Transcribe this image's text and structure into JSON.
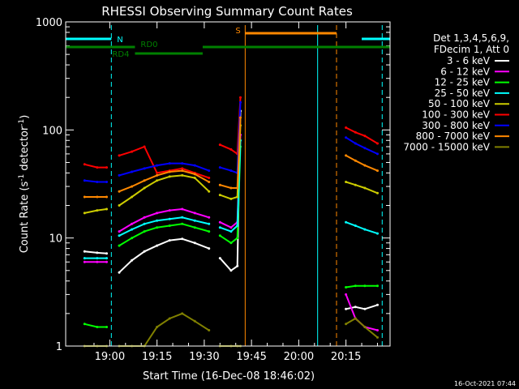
{
  "chart_data": {
    "type": "line",
    "title": "RHESSI Observing Summary Count Rates",
    "xlabel": "Start Time (16-Dec-08 18:46:02)",
    "ylabel_main": "Count Rate (s",
    "ylabel_sup1": "-1",
    "ylabel_mid": " detector",
    "ylabel_sup2": "-1",
    "ylabel_end": ")",
    "y_scale": "log",
    "ylim": [
      1,
      1000
    ],
    "xlim_min": [
      -14,
      89
    ],
    "x_ticks": [
      {
        "t": 0,
        "label": "19:00"
      },
      {
        "t": 15,
        "label": "19:15"
      },
      {
        "t": 30,
        "label": "19:30"
      },
      {
        "t": 45,
        "label": "19:45"
      },
      {
        "t": 60,
        "label": "20:00"
      },
      {
        "t": 75,
        "label": "20:15"
      }
    ],
    "y_ticks": [
      {
        "v": 1,
        "label": "1"
      },
      {
        "v": 10,
        "label": "10"
      },
      {
        "v": 100,
        "label": "100"
      },
      {
        "v": 1000,
        "label": "1000"
      }
    ],
    "legend_header": [
      "Det 1,3,4,5,6,9,",
      "FDecim 1, Att 0"
    ],
    "legend_position": "right",
    "series": [
      {
        "name": "3 - 6 keV",
        "color": "#ffffff",
        "x": [
          -8,
          -4,
          -1,
          3,
          7,
          11,
          15,
          19,
          23,
          27,
          31.5,
          35,
          38.5,
          40.5,
          41.5,
          75,
          78,
          81,
          85
        ],
        "y": [
          7.5,
          7.3,
          7.2,
          4.8,
          6.2,
          7.5,
          8.5,
          9.5,
          9.8,
          9.0,
          8.0,
          6.5,
          5.0,
          5.5,
          150,
          2.2,
          2.3,
          2.2,
          2.4
        ],
        "gaps_after_x": [
          -1,
          31.5,
          41.5
        ]
      },
      {
        "name": "6 - 12 keV",
        "color": "#ff00ff",
        "x": [
          -8,
          -4,
          -1,
          3,
          7,
          11,
          15,
          19,
          23,
          27,
          31.5,
          35,
          38.5,
          40.5,
          41.5,
          75,
          78,
          81,
          85
        ],
        "y": [
          6.0,
          6.0,
          6.0,
          11.5,
          13.5,
          15.5,
          17,
          18,
          18.5,
          17,
          15.5,
          14,
          12.5,
          14,
          90,
          3.0,
          1.8,
          1.5,
          1.4
        ],
        "gaps_after_x": [
          -1,
          31.5,
          41.5
        ]
      },
      {
        "name": "12 - 25 keV",
        "color": "#00ff00",
        "x": [
          -8,
          -4,
          -1,
          3,
          7,
          11,
          15,
          19,
          23,
          27,
          31.5,
          35,
          38.5,
          40.5,
          41.5,
          75,
          78,
          81,
          85
        ],
        "y": [
          1.6,
          1.5,
          1.5,
          8.5,
          10,
          11.5,
          12.5,
          13,
          13.5,
          12.5,
          11.5,
          10.5,
          9.0,
          10,
          70,
          3.5,
          3.6,
          3.6,
          3.6
        ],
        "gaps_after_x": [
          -1,
          31.5,
          41.5
        ]
      },
      {
        "name": "25 - 50 keV",
        "color": "#00ffff",
        "x": [
          -8,
          -4,
          -1,
          3,
          7,
          11,
          15,
          19,
          23,
          27,
          31.5,
          35,
          38.5,
          40.5,
          41.5,
          75,
          78,
          81,
          85
        ],
        "y": [
          6.5,
          6.5,
          6.5,
          10.5,
          12,
          13.5,
          14.5,
          15,
          15.5,
          14.5,
          13.5,
          12.5,
          11.5,
          13,
          80,
          14,
          13,
          12,
          11
        ],
        "gaps_after_x": [
          -1,
          31.5,
          41.5
        ]
      },
      {
        "name": "50 - 100 keV",
        "color": "#cccc00",
        "x": [
          -8,
          -4,
          -1,
          3,
          7,
          11,
          15,
          19,
          23,
          27,
          31.5,
          35,
          38.5,
          40.5,
          41.5,
          75,
          78,
          81,
          85
        ],
        "y": [
          17,
          18,
          18.5,
          20,
          24,
          29,
          34,
          37,
          38,
          36,
          27,
          25,
          23,
          24,
          110,
          33,
          31,
          29,
          26
        ],
        "gaps_after_x": [
          -1,
          31.5,
          41.5
        ]
      },
      {
        "name": "100 - 300 keV",
        "color": "#ff0000",
        "x": [
          -8,
          -4,
          -1,
          3,
          7,
          11,
          15,
          19,
          23,
          27,
          31.5,
          35,
          38.5,
          40.5,
          41.5,
          75,
          78,
          81,
          85
        ],
        "y": [
          48,
          45,
          45,
          58,
          63,
          70,
          40,
          42,
          44,
          40,
          36,
          73,
          66,
          60,
          200,
          105,
          95,
          88,
          75
        ],
        "gaps_after_x": [
          -1,
          31.5,
          41.5
        ]
      },
      {
        "name": "300 - 800 keV",
        "color": "#0000ff",
        "x": [
          -8,
          -4,
          -1,
          3,
          7,
          11,
          15,
          19,
          23,
          27,
          31.5,
          35,
          38.5,
          40.5,
          41.5,
          75,
          78,
          81,
          85
        ],
        "y": [
          34,
          33,
          33,
          38,
          41,
          44,
          47,
          49,
          49,
          47,
          42,
          45,
          42,
          40,
          180,
          85,
          75,
          68,
          60
        ],
        "gaps_after_x": [
          -1,
          31.5,
          41.5
        ]
      },
      {
        "name": "800 - 7000 keV",
        "color": "#ff8800",
        "x": [
          -8,
          -4,
          -1,
          3,
          7,
          11,
          15,
          19,
          23,
          27,
          31.5,
          35,
          38.5,
          40.5,
          41.5,
          75,
          78,
          81,
          85
        ],
        "y": [
          24,
          24,
          24,
          27,
          30,
          34,
          38,
          41,
          42,
          39,
          33,
          31,
          29,
          29,
          130,
          58,
          52,
          47,
          42
        ],
        "gaps_after_x": [
          -1,
          31.5,
          41.5
        ]
      },
      {
        "name": "7000 - 15000 keV",
        "color": "#808000",
        "x": [
          -8,
          -4,
          -1,
          3,
          7,
          11,
          15,
          19,
          23,
          27,
          31.5,
          35,
          38.5,
          40.5,
          41.5,
          75,
          78,
          81,
          85
        ],
        "y": [
          1,
          1,
          1,
          1,
          1,
          1,
          1.5,
          1.8,
          2.0,
          1.7,
          1.4,
          1,
          1,
          1,
          1,
          1.6,
          1.8,
          1.5,
          1.2
        ],
        "gaps_after_x": [
          -1,
          31.5,
          41.5
        ]
      }
    ],
    "top_bars": [
      {
        "label": "N",
        "color": "#00ffff",
        "segments": [
          [
            -14,
            0.5
          ],
          [
            80,
            89
          ]
        ],
        "y_level": 1
      },
      {
        "label": "S",
        "color": "#ff8800",
        "segments": [
          [
            43,
            72
          ]
        ],
        "y_level": 3
      },
      {
        "label": "RD0",
        "color": "#008000",
        "segments": [
          [
            -14,
            8
          ],
          [
            29.5,
            89
          ]
        ],
        "y_level": 0
      },
      {
        "label": "RD4",
        "color": "#008000",
        "segments": [
          [
            8,
            29.5
          ]
        ],
        "y_level": -1
      }
    ],
    "vertical_markers": [
      {
        "t": 0.5,
        "color": "#00ffff",
        "dash": true
      },
      {
        "t": 43,
        "color": "#ff8800",
        "dash": false
      },
      {
        "t": 66,
        "color": "#00ffff",
        "dash": false
      },
      {
        "t": 72,
        "color": "#ff8800",
        "dash": true
      },
      {
        "t": 86.5,
        "color": "#00ffff",
        "dash": true
      }
    ]
  },
  "footer_timestamp": "16-Oct-2021 07:44"
}
